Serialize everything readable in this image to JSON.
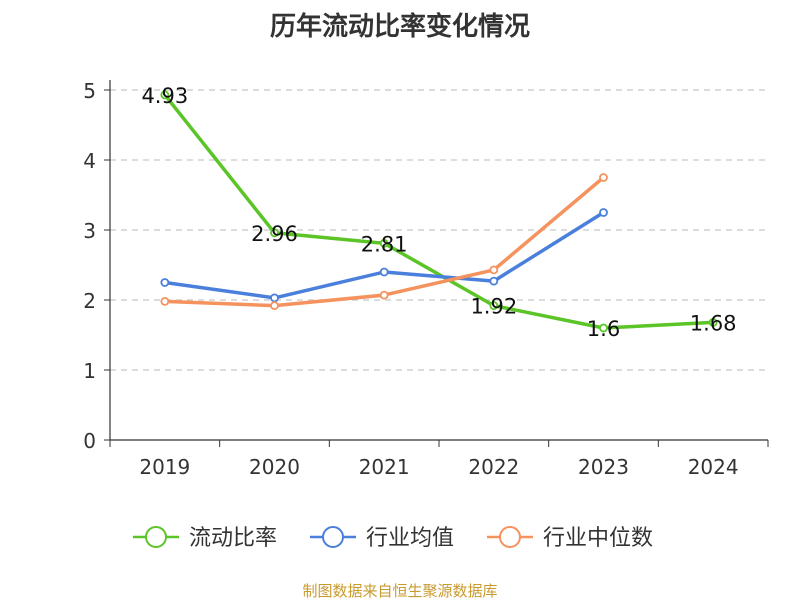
{
  "chart_data": {
    "type": "line",
    "title": "历年流动比率变化情况",
    "categories": [
      "2019",
      "2020",
      "2021",
      "2022",
      "2023",
      "2024"
    ],
    "ylim": [
      0,
      5
    ],
    "yticks": [
      "0",
      "1",
      "2",
      "3",
      "4",
      "5"
    ],
    "grid": true,
    "legend_position": "bottom",
    "series": [
      {
        "name": "流动比率",
        "color": "#5bc426",
        "values": [
          4.93,
          2.96,
          2.81,
          1.92,
          1.6,
          1.68
        ],
        "labels": [
          "4.93",
          "2.96",
          "2.81",
          "1.92",
          "1.6",
          "1.68"
        ]
      },
      {
        "name": "行业均值",
        "color": "#4a7fdc",
        "values": [
          2.25,
          2.03,
          2.4,
          2.27,
          3.25,
          null
        ]
      },
      {
        "name": "行业中位数",
        "color": "#f5925e",
        "values": [
          1.98,
          1.92,
          2.07,
          2.43,
          3.75,
          null
        ]
      }
    ]
  },
  "footer": {
    "source": "制图数据来自恒生聚源数据库"
  }
}
